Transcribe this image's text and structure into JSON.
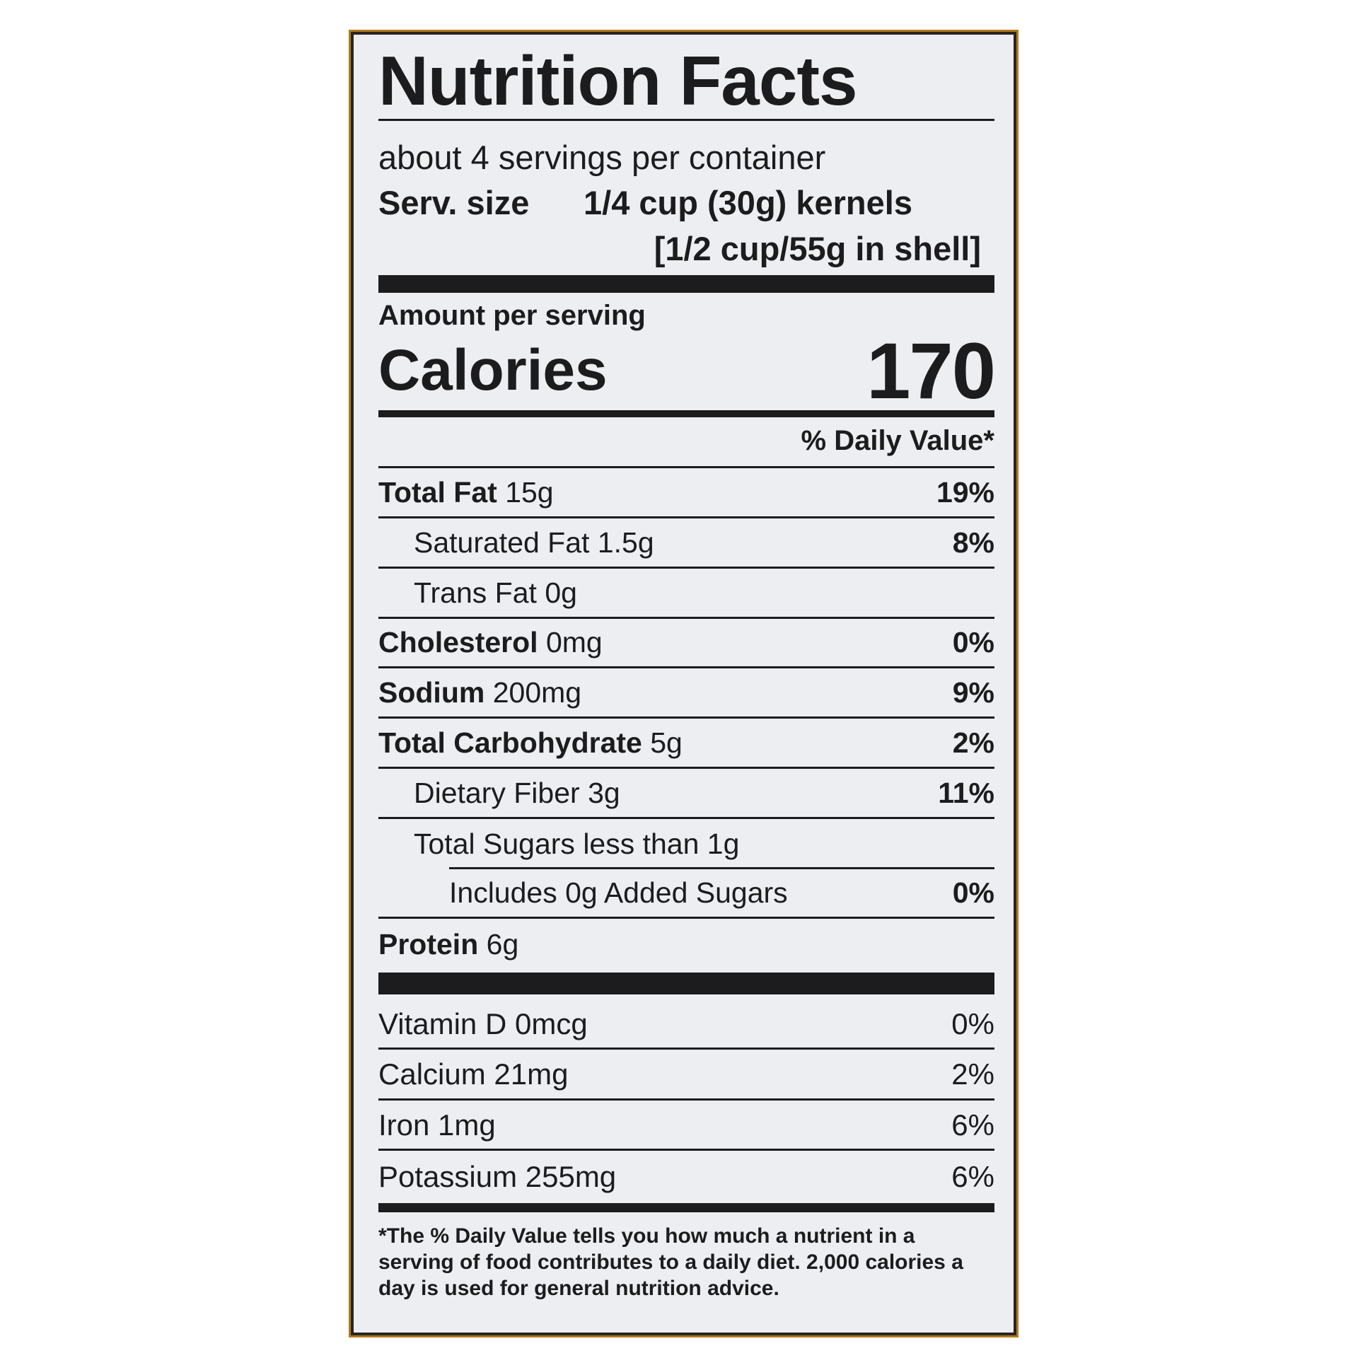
{
  "title": "Nutrition Facts",
  "servings": "about 4 servings per container",
  "serving_size": {
    "label": "Serv. size",
    "value": "1/4 cup (30g) kernels",
    "alt": "[1/2 cup/55g in shell]"
  },
  "amount_per_serving": "Amount per serving",
  "calories": {
    "label": "Calories",
    "value": "170"
  },
  "daily_value_header": "% Daily Value*",
  "nutrients": [
    {
      "name": "Total Fat",
      "amount": "15g",
      "dv": "19%",
      "bold": true,
      "indent": 0
    },
    {
      "name": "Saturated Fat",
      "amount": "1.5g",
      "dv": "8%",
      "bold": false,
      "indent": 1
    },
    {
      "name": "Trans Fat",
      "amount": "0g",
      "dv": "",
      "bold": false,
      "indent": 1
    },
    {
      "name": "Cholesterol",
      "amount": "0mg",
      "dv": "0%",
      "bold": true,
      "indent": 0
    },
    {
      "name": "Sodium",
      "amount": "200mg",
      "dv": "9%",
      "bold": true,
      "indent": 0
    },
    {
      "name": "Total Carbohydrate",
      "amount": "5g",
      "dv": "2%",
      "bold": true,
      "indent": 0
    },
    {
      "name": "Dietary Fiber",
      "amount": "3g",
      "dv": "11%",
      "bold": false,
      "indent": 1
    },
    {
      "name": "Total Sugars",
      "amount": "less than 1g",
      "dv": "",
      "bold": false,
      "indent": 1
    },
    {
      "name": "Includes 0g Added Sugars",
      "amount": "",
      "dv": "0%",
      "bold": false,
      "indent": 2
    },
    {
      "name": "Protein",
      "amount": "6g",
      "dv": "",
      "bold": true,
      "indent": 0
    }
  ],
  "vitamins": [
    {
      "name": "Vitamin D",
      "amount": "0mcg",
      "dv": "0%"
    },
    {
      "name": "Calcium",
      "amount": "21mg",
      "dv": "2%"
    },
    {
      "name": "Iron",
      "amount": "1mg",
      "dv": "6%"
    },
    {
      "name": "Potassium",
      "amount": "255mg",
      "dv": "6%"
    }
  ],
  "footnote": [
    "*The % Daily Value tells you how much a nutrient in a",
    "serving of food contributes to a daily diet. 2,000 calories a",
    "day is used for general nutrition advice."
  ]
}
